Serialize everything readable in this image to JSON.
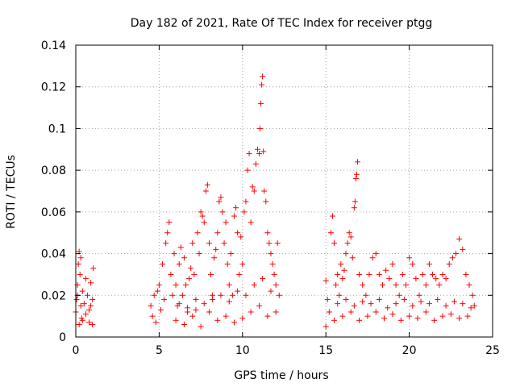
{
  "chart_data": {
    "type": "scatter",
    "title": "Day 182 of 2021, Rate Of TEC Index for receiver ptgg",
    "xlabel": "GPS time / hours",
    "ylabel": "ROTI / TECUs",
    "xlim": [
      0,
      25
    ],
    "ylim": [
      0,
      0.14
    ],
    "x_ticks": [
      0,
      5,
      10,
      15,
      20,
      25
    ],
    "y_ticks": [
      0,
      0.02,
      0.04,
      0.06,
      0.08,
      0.1,
      0.12,
      0.14
    ],
    "x_tick_labels": [
      "0",
      "5",
      "10",
      "15",
      "20",
      "25"
    ],
    "y_tick_labels": [
      "0",
      "0.02",
      "0.04",
      "0.06",
      "0.08",
      "0.1",
      "0.12",
      "0.14"
    ],
    "grid": true,
    "marker": "+",
    "color": "#ff0000",
    "series": [
      {
        "points": [
          [
            0.0,
            0.012
          ],
          [
            0.05,
            0.018
          ],
          [
            0.1,
            0.025
          ],
          [
            0.15,
            0.035
          ],
          [
            0.2,
            0.041
          ],
          [
            0.25,
            0.03
          ],
          [
            0.3,
            0.015
          ],
          [
            0.35,
            0.009
          ],
          [
            0.4,
            0.022
          ],
          [
            0.5,
            0.016
          ],
          [
            0.6,
            0.011
          ],
          [
            0.7,
            0.02
          ],
          [
            0.8,
            0.013
          ],
          [
            0.9,
            0.026
          ],
          [
            1.0,
            0.018
          ],
          [
            1.05,
            0.033
          ],
          [
            0.2,
            0.006
          ],
          [
            0.4,
            0.008
          ],
          [
            0.6,
            0.028
          ],
          [
            0.8,
            0.007
          ],
          [
            1.0,
            0.006
          ],
          [
            0.3,
            0.038
          ],
          [
            0.1,
            0.02
          ],
          [
            0.9,
            0.015
          ],
          [
            4.5,
            0.015
          ],
          [
            4.6,
            0.01
          ],
          [
            4.7,
            0.02
          ],
          [
            4.8,
            0.007
          ],
          [
            4.9,
            0.022
          ],
          [
            5.0,
            0.025
          ],
          [
            5.1,
            0.013
          ],
          [
            5.2,
            0.035
          ],
          [
            5.3,
            0.018
          ],
          [
            5.4,
            0.045
          ],
          [
            5.5,
            0.05
          ],
          [
            5.6,
            0.055
          ],
          [
            5.7,
            0.03
          ],
          [
            5.8,
            0.02
          ],
          [
            5.9,
            0.04
          ],
          [
            6.0,
            0.025
          ],
          [
            6.1,
            0.015
          ],
          [
            6.2,
            0.035
          ],
          [
            6.3,
            0.043
          ],
          [
            6.4,
            0.02
          ],
          [
            6.5,
            0.038
          ],
          [
            6.6,
            0.025
          ],
          [
            6.7,
            0.012
          ],
          [
            6.8,
            0.028
          ],
          [
            6.9,
            0.033
          ],
          [
            7.0,
            0.045
          ],
          [
            7.1,
            0.03
          ],
          [
            7.2,
            0.018
          ],
          [
            7.3,
            0.05
          ],
          [
            7.4,
            0.04
          ],
          [
            7.5,
            0.06
          ],
          [
            7.6,
            0.058
          ],
          [
            7.7,
            0.055
          ],
          [
            7.8,
            0.07
          ],
          [
            7.9,
            0.073
          ],
          [
            8.0,
            0.045
          ],
          [
            8.1,
            0.03
          ],
          [
            8.2,
            0.02
          ],
          [
            8.3,
            0.038
          ],
          [
            8.4,
            0.042
          ],
          [
            8.5,
            0.05
          ],
          [
            8.6,
            0.065
          ],
          [
            8.7,
            0.067
          ],
          [
            8.8,
            0.06
          ],
          [
            8.9,
            0.045
          ],
          [
            9.0,
            0.055
          ],
          [
            9.1,
            0.035
          ],
          [
            9.2,
            0.025
          ],
          [
            9.3,
            0.04
          ],
          [
            9.4,
            0.02
          ],
          [
            9.5,
            0.058
          ],
          [
            9.6,
            0.062
          ],
          [
            9.7,
            0.05
          ],
          [
            9.8,
            0.03
          ],
          [
            9.9,
            0.048
          ],
          [
            10.0,
            0.035
          ],
          [
            10.1,
            0.06
          ],
          [
            10.2,
            0.065
          ],
          [
            10.3,
            0.08
          ],
          [
            10.4,
            0.088
          ],
          [
            10.5,
            0.055
          ],
          [
            10.6,
            0.072
          ],
          [
            10.7,
            0.07
          ],
          [
            10.8,
            0.083
          ],
          [
            10.9,
            0.09
          ],
          [
            11.0,
            0.088
          ],
          [
            11.05,
            0.1
          ],
          [
            11.1,
            0.112
          ],
          [
            11.15,
            0.121
          ],
          [
            11.2,
            0.125
          ],
          [
            11.25,
            0.089
          ],
          [
            11.3,
            0.07
          ],
          [
            11.4,
            0.065
          ],
          [
            11.5,
            0.05
          ],
          [
            11.6,
            0.045
          ],
          [
            11.7,
            0.04
          ],
          [
            11.8,
            0.035
          ],
          [
            11.9,
            0.03
          ],
          [
            12.0,
            0.025
          ],
          [
            12.1,
            0.045
          ],
          [
            12.2,
            0.02
          ],
          [
            6.0,
            0.008
          ],
          [
            6.5,
            0.006
          ],
          [
            7.0,
            0.01
          ],
          [
            7.5,
            0.005
          ],
          [
            8.0,
            0.012
          ],
          [
            8.5,
            0.008
          ],
          [
            9.0,
            0.01
          ],
          [
            9.5,
            0.007
          ],
          [
            10.0,
            0.009
          ],
          [
            10.5,
            0.012
          ],
          [
            11.0,
            0.015
          ],
          [
            11.5,
            0.01
          ],
          [
            12.0,
            0.012
          ],
          [
            6.2,
            0.016
          ],
          [
            6.7,
            0.014
          ],
          [
            7.2,
            0.013
          ],
          [
            7.7,
            0.016
          ],
          [
            8.2,
            0.018
          ],
          [
            8.7,
            0.02
          ],
          [
            9.2,
            0.017
          ],
          [
            9.7,
            0.022
          ],
          [
            10.2,
            0.02
          ],
          [
            10.7,
            0.025
          ],
          [
            11.2,
            0.028
          ],
          [
            11.7,
            0.022
          ],
          [
            15.0,
            0.027
          ],
          [
            15.0,
            0.005
          ],
          [
            15.1,
            0.018
          ],
          [
            15.2,
            0.012
          ],
          [
            15.3,
            0.05
          ],
          [
            15.4,
            0.058
          ],
          [
            15.5,
            0.045
          ],
          [
            15.6,
            0.025
          ],
          [
            15.7,
            0.03
          ],
          [
            15.8,
            0.02
          ],
          [
            15.9,
            0.035
          ],
          [
            16.0,
            0.028
          ],
          [
            16.1,
            0.032
          ],
          [
            16.2,
            0.04
          ],
          [
            16.3,
            0.045
          ],
          [
            16.4,
            0.05
          ],
          [
            16.5,
            0.048
          ],
          [
            16.6,
            0.038
          ],
          [
            16.7,
            0.062
          ],
          [
            16.75,
            0.065
          ],
          [
            16.8,
            0.076
          ],
          [
            16.85,
            0.078
          ],
          [
            16.9,
            0.084
          ],
          [
            17.0,
            0.03
          ],
          [
            17.2,
            0.025
          ],
          [
            17.4,
            0.02
          ],
          [
            17.6,
            0.03
          ],
          [
            17.8,
            0.038
          ],
          [
            18.0,
            0.04
          ],
          [
            18.2,
            0.03
          ],
          [
            18.4,
            0.025
          ],
          [
            18.6,
            0.032
          ],
          [
            18.8,
            0.028
          ],
          [
            19.0,
            0.035
          ],
          [
            19.2,
            0.025
          ],
          [
            19.4,
            0.02
          ],
          [
            19.6,
            0.03
          ],
          [
            19.8,
            0.025
          ],
          [
            20.0,
            0.038
          ],
          [
            20.2,
            0.035
          ],
          [
            20.4,
            0.028
          ],
          [
            20.6,
            0.02
          ],
          [
            20.8,
            0.03
          ],
          [
            21.0,
            0.025
          ],
          [
            21.2,
            0.035
          ],
          [
            21.4,
            0.03
          ],
          [
            21.6,
            0.028
          ],
          [
            21.8,
            0.025
          ],
          [
            22.0,
            0.03
          ],
          [
            22.2,
            0.028
          ],
          [
            22.4,
            0.035
          ],
          [
            22.6,
            0.038
          ],
          [
            22.8,
            0.04
          ],
          [
            23.0,
            0.047
          ],
          [
            23.2,
            0.042
          ],
          [
            23.4,
            0.03
          ],
          [
            23.6,
            0.025
          ],
          [
            23.8,
            0.02
          ],
          [
            23.9,
            0.015
          ],
          [
            15.5,
            0.008
          ],
          [
            16.0,
            0.01
          ],
          [
            16.5,
            0.012
          ],
          [
            17.0,
            0.008
          ],
          [
            17.5,
            0.01
          ],
          [
            18.0,
            0.012
          ],
          [
            18.5,
            0.009
          ],
          [
            19.0,
            0.011
          ],
          [
            19.5,
            0.008
          ],
          [
            20.0,
            0.01
          ],
          [
            20.5,
            0.009
          ],
          [
            21.0,
            0.012
          ],
          [
            21.5,
            0.008
          ],
          [
            22.0,
            0.01
          ],
          [
            22.5,
            0.011
          ],
          [
            23.0,
            0.009
          ],
          [
            23.5,
            0.01
          ],
          [
            15.7,
            0.016
          ],
          [
            16.2,
            0.018
          ],
          [
            16.7,
            0.015
          ],
          [
            17.2,
            0.017
          ],
          [
            17.7,
            0.016
          ],
          [
            18.2,
            0.018
          ],
          [
            18.7,
            0.014
          ],
          [
            19.2,
            0.016
          ],
          [
            19.7,
            0.018
          ],
          [
            20.2,
            0.015
          ],
          [
            20.7,
            0.017
          ],
          [
            21.2,
            0.016
          ],
          [
            21.7,
            0.018
          ],
          [
            22.2,
            0.015
          ],
          [
            22.7,
            0.017
          ],
          [
            23.2,
            0.016
          ],
          [
            23.7,
            0.014
          ]
        ]
      }
    ]
  }
}
